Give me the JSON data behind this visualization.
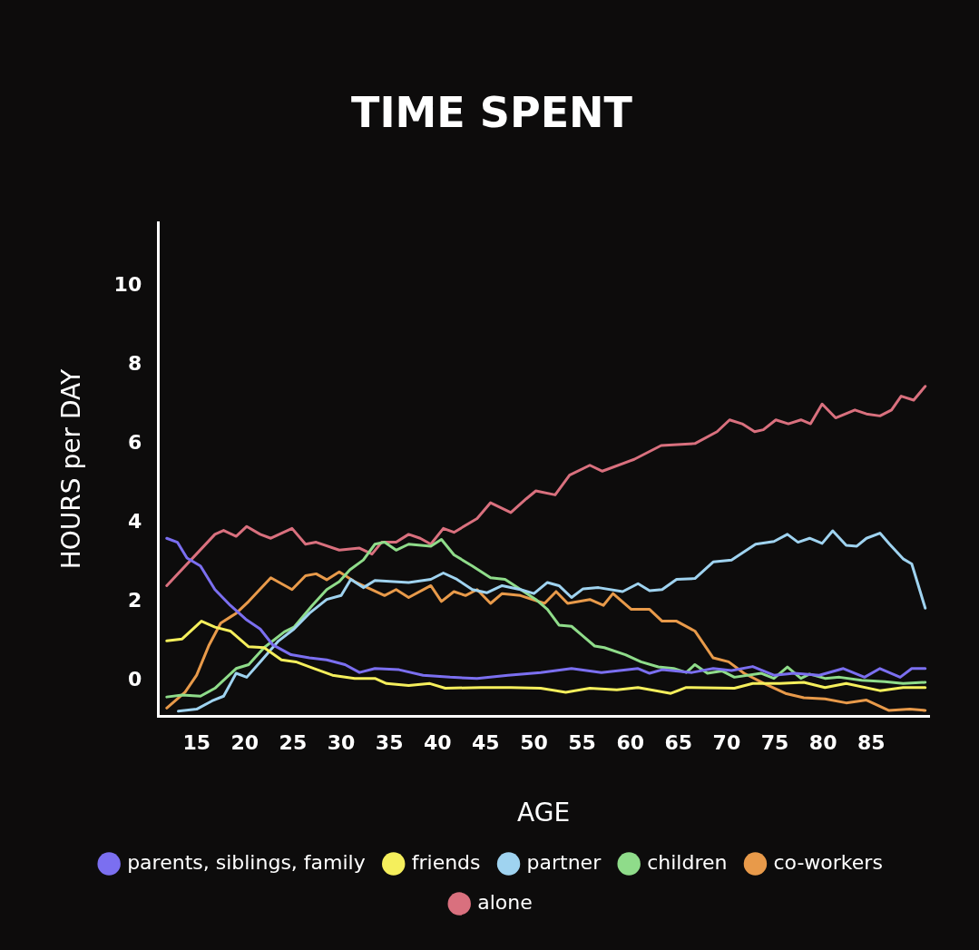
{
  "chart_data": {
    "type": "line",
    "title": "TIME SPENT",
    "xlabel": "AGE",
    "ylabel": "HOURS per DAY",
    "xlim": [
      11,
      91
    ],
    "xticks": [
      15,
      20,
      25,
      30,
      35,
      40,
      45,
      50,
      55,
      60,
      65,
      70,
      75,
      80,
      85
    ],
    "ylim": [
      -0.9,
      11.6
    ],
    "yticks": [
      0,
      2,
      4,
      6,
      8,
      10
    ],
    "grid": false,
    "legend": "bottom",
    "marker": "none",
    "line_style": "solid",
    "series": [
      {
        "name": "parents, siblings, family",
        "color": "#7b6ff0",
        "x": [
          11.9,
          13,
          14,
          15.4,
          16.9,
          18.5,
          20.1,
          21.6,
          22.9,
          24.8,
          26.7,
          28.5,
          30.4,
          31.9,
          33.5,
          36,
          38.5,
          41.3,
          44.1,
          47.3,
          50.7,
          53.9,
          57,
          60.8,
          62,
          63.3,
          66.4,
          68.6,
          70.5,
          72.7,
          74.9,
          77,
          79.6,
          82.1,
          84.3,
          85.9,
          88,
          89.2,
          90.6
        ],
        "values": [
          3.6,
          3.5,
          3.1,
          2.9,
          2.3,
          1.9,
          1.55,
          1.3,
          0.9,
          0.65,
          0.57,
          0.52,
          0.4,
          0.2,
          0.3,
          0.27,
          0.13,
          0.08,
          0.05,
          0.13,
          0.2,
          0.3,
          0.2,
          0.3,
          0.18,
          0.27,
          0.2,
          0.3,
          0.25,
          0.35,
          0.13,
          0.18,
          0.13,
          0.3,
          0.08,
          0.3,
          0.08,
          0.3,
          0.3
        ]
      },
      {
        "name": "friends",
        "color": "#f5ef5c",
        "x": [
          11.9,
          13.5,
          15.5,
          16.9,
          18.5,
          20.4,
          22,
          23.8,
          25.3,
          27.2,
          29.1,
          31.4,
          33.5,
          34.7,
          37,
          39.2,
          40.8,
          44.5,
          47.6,
          50.7,
          53.3,
          55.8,
          58.6,
          60.8,
          64.2,
          65.8,
          70.8,
          72.7,
          75.5,
          78,
          80.2,
          82.4,
          85.9,
          88.3,
          90.6
        ],
        "values": [
          1.0,
          1.05,
          1.5,
          1.35,
          1.25,
          0.85,
          0.83,
          0.52,
          0.47,
          0.3,
          0.13,
          0.05,
          0.05,
          -0.08,
          -0.13,
          -0.08,
          -0.2,
          -0.18,
          -0.18,
          -0.2,
          -0.3,
          -0.2,
          -0.24,
          -0.18,
          -0.33,
          -0.18,
          -0.2,
          -0.08,
          -0.08,
          -0.05,
          -0.18,
          -0.08,
          -0.26,
          -0.18,
          -0.18
        ]
      },
      {
        "name": "partner",
        "color": "#9fd3f0",
        "x": [
          13.1,
          15,
          16.6,
          17.8,
          19.1,
          20.2,
          21.6,
          23.5,
          25.1,
          26.7,
          28.5,
          30,
          31,
          32.3,
          33.5,
          37,
          39.3,
          40.6,
          42,
          43.6,
          45.1,
          46.7,
          48.6,
          50,
          51.4,
          52.6,
          53.9,
          55.1,
          56.7,
          59.2,
          60.8,
          62,
          63.3,
          64.8,
          66.7,
          68.6,
          70.5,
          73,
          74.9,
          76.3,
          77.4,
          78.6,
          79.9,
          81,
          82.4,
          83.5,
          84.5,
          85.9,
          86.9,
          88.3,
          89.2,
          90.6
        ],
        "values": [
          -0.78,
          -0.73,
          -0.52,
          -0.4,
          0.18,
          0.08,
          0.47,
          1.0,
          1.3,
          1.7,
          2.05,
          2.15,
          2.56,
          2.35,
          2.53,
          2.48,
          2.56,
          2.72,
          2.56,
          2.3,
          2.22,
          2.4,
          2.3,
          2.2,
          2.48,
          2.4,
          2.1,
          2.32,
          2.35,
          2.25,
          2.45,
          2.27,
          2.3,
          2.56,
          2.58,
          3.0,
          3.05,
          3.45,
          3.52,
          3.7,
          3.5,
          3.6,
          3.47,
          3.79,
          3.42,
          3.4,
          3.6,
          3.73,
          3.45,
          3.08,
          2.95,
          1.83
        ]
      },
      {
        "name": "children",
        "color": "#8fdc8a",
        "x": [
          11.9,
          13.5,
          15.4,
          16.9,
          19.1,
          20.4,
          22,
          24.1,
          25.1,
          27,
          28.5,
          29.8,
          30.9,
          32.3,
          33.5,
          34.5,
          35.7,
          37,
          39.3,
          40.4,
          41.7,
          43.6,
          45.5,
          47,
          48.3,
          50.2,
          51.4,
          52.6,
          53.9,
          55.1,
          56.3,
          57.3,
          59.5,
          61.1,
          62.9,
          64.5,
          65.8,
          66.7,
          68,
          69.5,
          70.8,
          73.6,
          74.9,
          76.3,
          77.7,
          78.6,
          80.2,
          81.7,
          84,
          86.4,
          88.3,
          90.6
        ],
        "values": [
          -0.42,
          -0.37,
          -0.4,
          -0.2,
          0.3,
          0.4,
          0.83,
          1.23,
          1.35,
          1.9,
          2.3,
          2.5,
          2.8,
          3.05,
          3.45,
          3.5,
          3.3,
          3.45,
          3.4,
          3.57,
          3.18,
          2.9,
          2.6,
          2.56,
          2.35,
          2.05,
          1.8,
          1.4,
          1.37,
          1.12,
          0.87,
          0.83,
          0.65,
          0.47,
          0.34,
          0.3,
          0.2,
          0.4,
          0.18,
          0.24,
          0.08,
          0.18,
          0.05,
          0.34,
          0.05,
          0.16,
          0.05,
          0.08,
          0,
          -0.03,
          -0.08,
          -0.05
        ]
      },
      {
        "name": "co-workers",
        "color": "#e89a4a",
        "x": [
          11.9,
          13.8,
          15,
          16.3,
          17.5,
          19.1,
          20.4,
          22.7,
          24.9,
          26.3,
          27.4,
          28.5,
          29.8,
          31.4,
          34.5,
          35.7,
          37,
          39.3,
          40.4,
          41.7,
          42.9,
          44.1,
          45.5,
          46.7,
          48.6,
          51.1,
          52.3,
          53.5,
          55.8,
          57.2,
          58.2,
          60.1,
          62,
          63.3,
          64.8,
          66.7,
          68.6,
          70.2,
          71.8,
          73.9,
          76.1,
          78,
          80.2,
          82.4,
          84.5,
          86.8,
          89,
          90.6
        ],
        "values": [
          -0.7,
          -0.3,
          0.13,
          0.9,
          1.45,
          1.7,
          2.0,
          2.6,
          2.3,
          2.65,
          2.7,
          2.55,
          2.75,
          2.5,
          2.15,
          2.3,
          2.1,
          2.4,
          2.0,
          2.25,
          2.15,
          2.3,
          1.95,
          2.2,
          2.15,
          1.95,
          2.25,
          1.95,
          2.05,
          1.9,
          2.2,
          1.8,
          1.8,
          1.5,
          1.5,
          1.25,
          0.57,
          0.47,
          0.18,
          -0.08,
          -0.33,
          -0.44,
          -0.47,
          -0.57,
          -0.5,
          -0.76,
          -0.73,
          -0.76
        ]
      },
      {
        "name": "alone",
        "color": "#d9707e",
        "x": [
          11.9,
          16.9,
          17.8,
          19.1,
          20.2,
          21.6,
          22.7,
          24.9,
          26.3,
          27.4,
          29.8,
          31.9,
          33.2,
          34.2,
          35.7,
          37,
          38.2,
          39.3,
          40.6,
          41.7,
          44.1,
          45.5,
          47.6,
          49.2,
          50.2,
          52.2,
          53.7,
          55.8,
          57.1,
          60.4,
          63.2,
          66.7,
          69,
          70.3,
          71.6,
          72.9,
          73.8,
          75.1,
          76.4,
          77.7,
          78.7,
          79.9,
          81.3,
          83.3,
          84.5,
          85.9,
          87.1,
          88.1,
          89.4,
          90.6
        ],
        "values": [
          2.4,
          3.7,
          3.8,
          3.65,
          3.9,
          3.7,
          3.6,
          3.85,
          3.45,
          3.5,
          3.3,
          3.35,
          3.2,
          3.5,
          3.5,
          3.7,
          3.6,
          3.45,
          3.85,
          3.75,
          4.1,
          4.5,
          4.25,
          4.6,
          4.8,
          4.7,
          5.2,
          5.45,
          5.3,
          5.6,
          5.95,
          6.0,
          6.3,
          6.6,
          6.5,
          6.3,
          6.35,
          6.6,
          6.5,
          6.6,
          6.5,
          7.0,
          6.65,
          6.85,
          6.75,
          6.7,
          6.85,
          7.2,
          7.1,
          7.45
        ]
      }
    ]
  }
}
